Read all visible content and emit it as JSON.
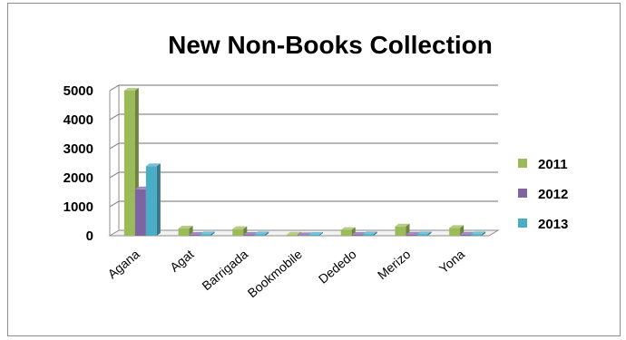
{
  "chart_data": {
    "type": "bar",
    "title": "New Non-Books Collection",
    "categories": [
      "Agana",
      "Agat",
      "Barrigada",
      "Bookmobile",
      "Dededo",
      "Merizo",
      "Yona"
    ],
    "series": [
      {
        "name": "2011",
        "values": [
          5000,
          250,
          230,
          40,
          200,
          320,
          270
        ],
        "color": "#9bbb59"
      },
      {
        "name": "2012",
        "values": [
          1600,
          30,
          30,
          20,
          30,
          40,
          40
        ],
        "color": "#8064a2"
      },
      {
        "name": "2013",
        "values": [
          2400,
          50,
          50,
          30,
          50,
          50,
          50
        ],
        "color": "#4bacc6"
      }
    ],
    "yticks": [
      "0",
      "1000",
      "2000",
      "3000",
      "4000",
      "5000"
    ],
    "ylim": [
      0,
      5000
    ],
    "grid": true,
    "legend_position": "right"
  }
}
